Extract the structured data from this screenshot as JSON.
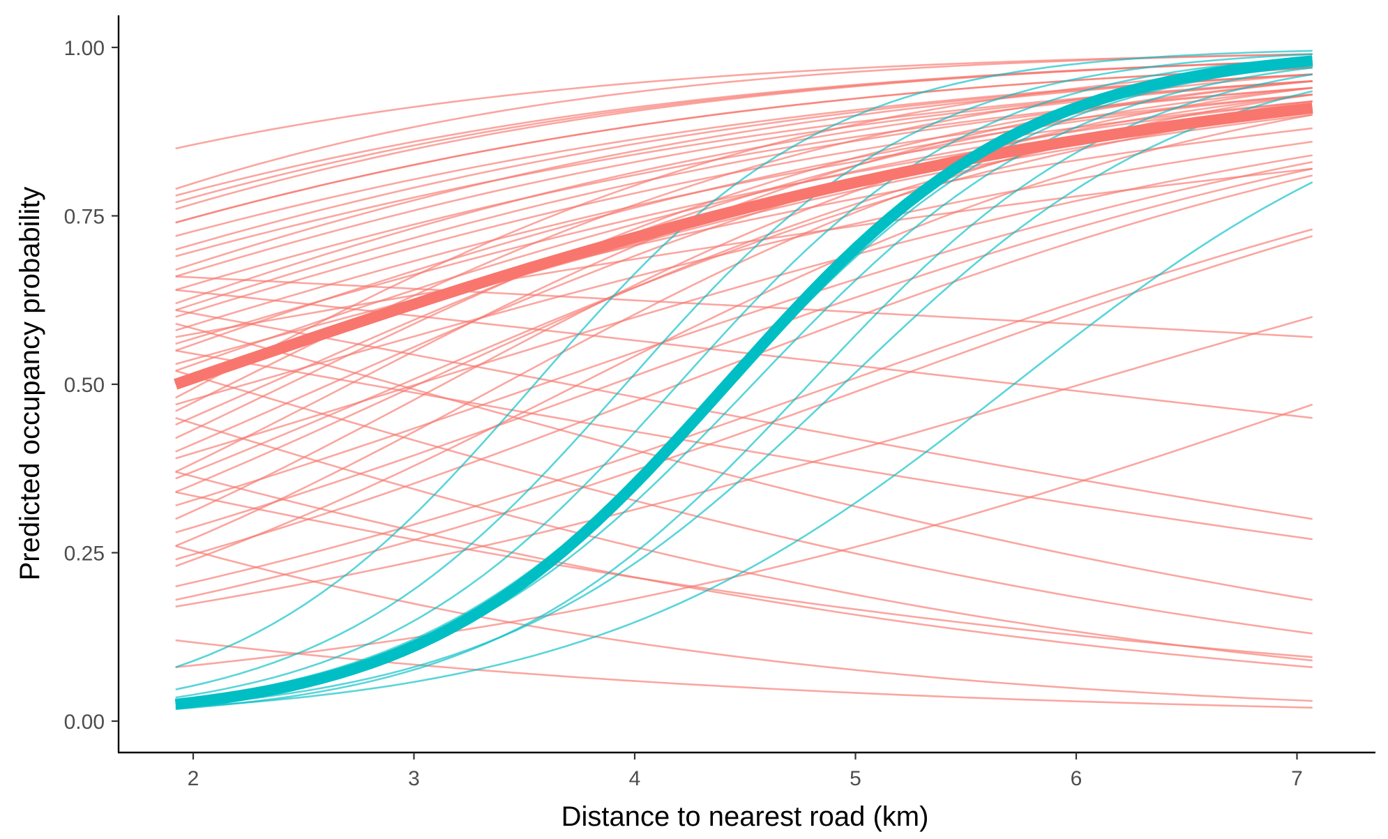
{
  "chart_data": {
    "type": "line",
    "title": "",
    "xlabel": "Distance to nearest road (km)",
    "ylabel": "Predicted occupancy probability",
    "xlim": [
      1.65,
      7.3
    ],
    "ylim": [
      -0.04,
      1.05
    ],
    "x_range": [
      1.92,
      7.07
    ],
    "x_ticks": [
      2,
      3,
      4,
      5,
      6,
      7
    ],
    "x_tick_labels": [
      "2",
      "3",
      "4",
      "5",
      "6",
      "7"
    ],
    "y_ticks": [
      0.0,
      0.25,
      0.5,
      0.75,
      1.0
    ],
    "y_tick_labels": [
      "0.00",
      "0.25",
      "0.50",
      "0.75",
      "1.00"
    ],
    "grid": false,
    "legend": "none",
    "colors": {
      "group_1": "#F8766D",
      "group_2": "#00BFC4",
      "axis": "#000000",
      "tick_text": "#4d4d4d"
    },
    "series": [
      {
        "group": "group_1",
        "role": "mean",
        "endpoints": [
          [
            1.92,
            0.5
          ],
          [
            7.07,
            0.91
          ]
        ],
        "samples": [
          {
            "start": 0.85,
            "end": 0.99
          },
          {
            "start": 0.79,
            "end": 0.99
          },
          {
            "start": 0.78,
            "end": 0.98
          },
          {
            "start": 0.77,
            "end": 0.98
          },
          {
            "start": 0.76,
            "end": 0.98
          },
          {
            "start": 0.74,
            "end": 0.97
          },
          {
            "start": 0.74,
            "end": 0.97
          },
          {
            "start": 0.72,
            "end": 0.96
          },
          {
            "start": 0.7,
            "end": 0.96
          },
          {
            "start": 0.69,
            "end": 0.95
          },
          {
            "start": 0.67,
            "end": 0.96
          },
          {
            "start": 0.66,
            "end": 0.95
          },
          {
            "start": 0.64,
            "end": 0.94
          },
          {
            "start": 0.62,
            "end": 0.95
          },
          {
            "start": 0.61,
            "end": 0.94
          },
          {
            "start": 0.6,
            "end": 0.93
          },
          {
            "start": 0.58,
            "end": 0.92
          },
          {
            "start": 0.56,
            "end": 0.91
          },
          {
            "start": 0.55,
            "end": 0.93
          },
          {
            "start": 0.52,
            "end": 0.92
          },
          {
            "start": 0.5,
            "end": 0.9
          },
          {
            "start": 0.48,
            "end": 0.97
          },
          {
            "start": 0.46,
            "end": 0.96
          },
          {
            "start": 0.44,
            "end": 0.94
          },
          {
            "start": 0.42,
            "end": 0.95
          },
          {
            "start": 0.4,
            "end": 0.93
          },
          {
            "start": 0.39,
            "end": 0.84
          },
          {
            "start": 0.37,
            "end": 0.95
          },
          {
            "start": 0.36,
            "end": 0.91
          },
          {
            "start": 0.34,
            "end": 0.92
          },
          {
            "start": 0.32,
            "end": 0.83
          },
          {
            "start": 0.3,
            "end": 0.94
          },
          {
            "start": 0.28,
            "end": 0.82
          },
          {
            "start": 0.26,
            "end": 0.93
          },
          {
            "start": 0.24,
            "end": 0.81
          },
          {
            "start": 0.23,
            "end": 0.9
          },
          {
            "start": 0.2,
            "end": 0.73
          },
          {
            "start": 0.18,
            "end": 0.72
          },
          {
            "start": 0.17,
            "end": 0.6
          },
          {
            "start": 0.66,
            "end": 0.57
          },
          {
            "start": 0.64,
            "end": 0.45
          },
          {
            "start": 0.61,
            "end": 0.3
          },
          {
            "start": 0.59,
            "end": 0.18
          },
          {
            "start": 0.55,
            "end": 0.27
          },
          {
            "start": 0.52,
            "end": 0.13
          },
          {
            "start": 0.45,
            "end": 0.09
          },
          {
            "start": 0.37,
            "end": 0.08
          },
          {
            "start": 0.26,
            "end": 0.03
          },
          {
            "start": 0.12,
            "end": 0.02
          },
          {
            "start": 0.08,
            "end": 0.47
          },
          {
            "start": 0.34,
            "end": 0.095
          },
          {
            "start": 0.57,
            "end": 0.82
          },
          {
            "start": 0.53,
            "end": 0.88
          },
          {
            "start": 0.47,
            "end": 0.86
          }
        ]
      },
      {
        "group": "group_2",
        "role": "mean",
        "endpoints": [
          [
            1.92,
            0.025
          ],
          [
            7.07,
            0.98
          ]
        ],
        "samples": [
          {
            "start": 0.08,
            "end": 0.995
          },
          {
            "start": 0.047,
            "end": 0.99
          },
          {
            "start": 0.035,
            "end": 0.985
          },
          {
            "start": 0.03,
            "end": 0.975
          },
          {
            "start": 0.027,
            "end": 0.97
          },
          {
            "start": 0.022,
            "end": 0.935
          },
          {
            "start": 0.02,
            "end": 0.8
          },
          {
            "start": 0.018,
            "end": 0.96
          }
        ]
      }
    ]
  }
}
